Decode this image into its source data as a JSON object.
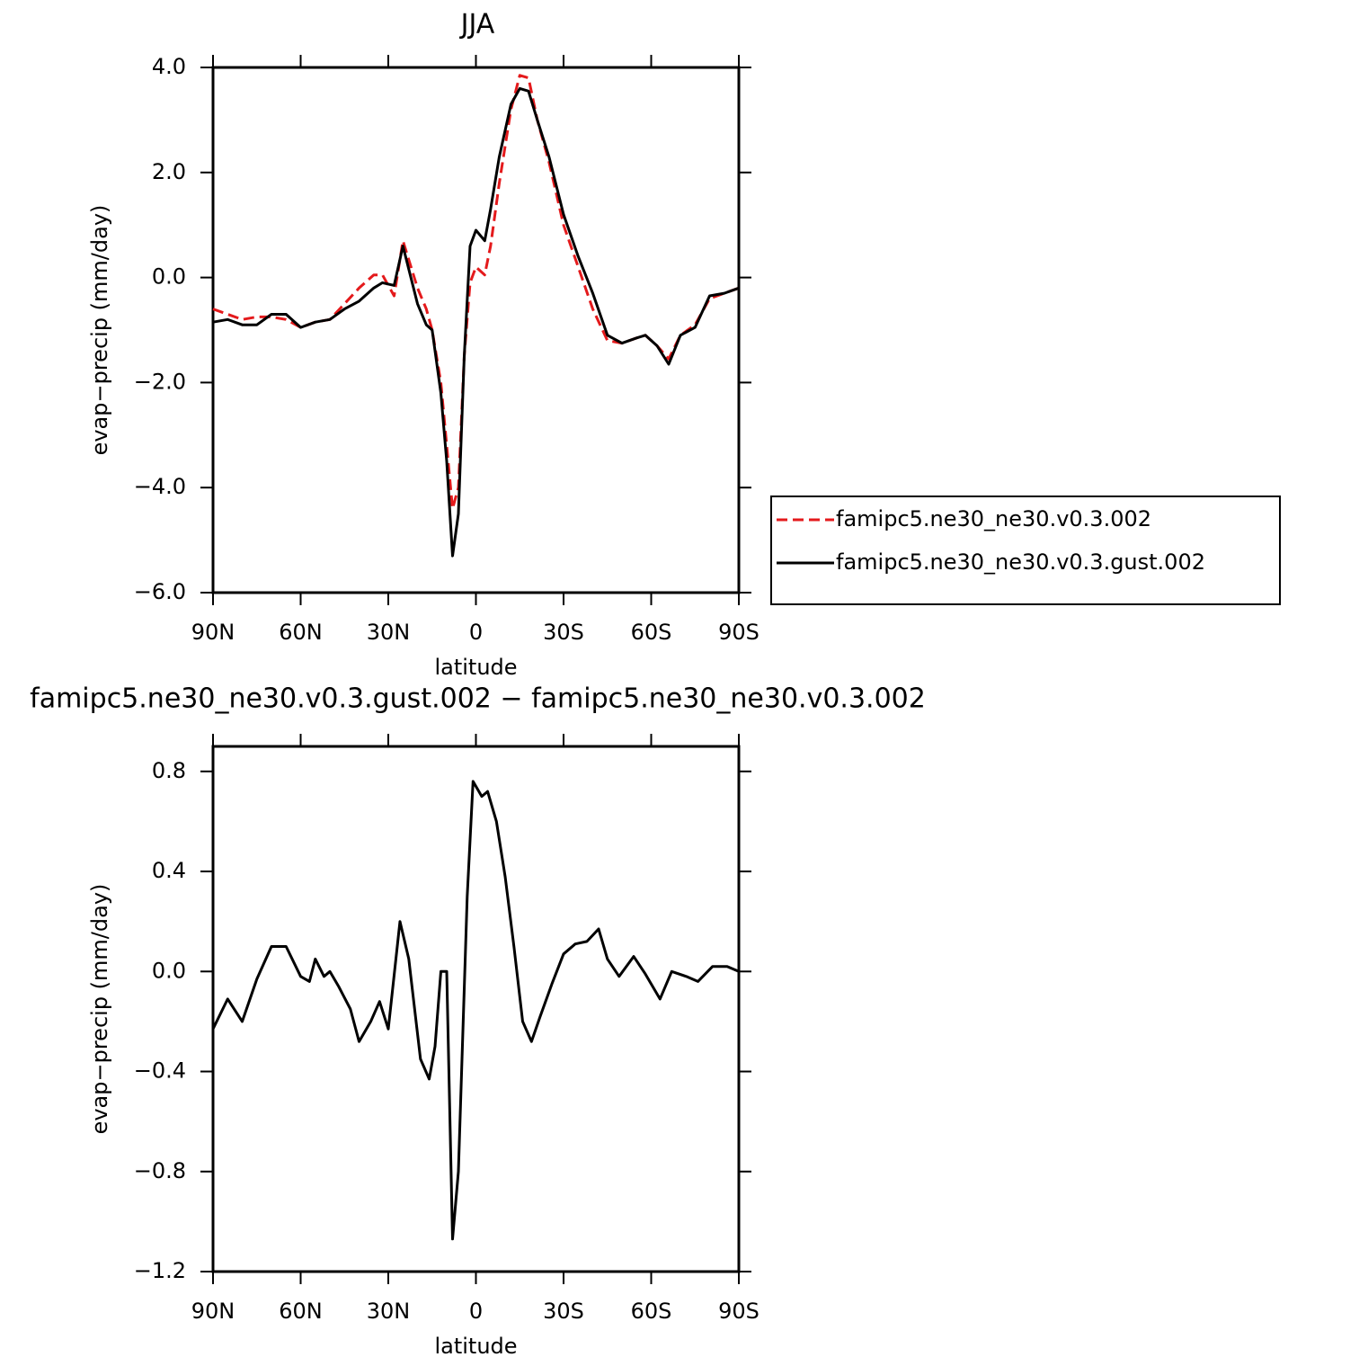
{
  "chart_data": [
    {
      "type": "line",
      "title": "JJA",
      "xlabel": "latitude",
      "ylabel": "evap−precip (mm/day)",
      "x": [
        90,
        85,
        80,
        75,
        70,
        65,
        60,
        55,
        50,
        45,
        40,
        35,
        32,
        28,
        25,
        20,
        17,
        15,
        12,
        10,
        8,
        6,
        4,
        2,
        0,
        -3,
        -5,
        -8,
        -12,
        -15,
        -18,
        -21,
        -25,
        -30,
        -35,
        -40,
        -45,
        -50,
        -55,
        -58,
        -62,
        -66,
        -70,
        -75,
        -80,
        -85,
        -90
      ],
      "series": [
        {
          "name": "famipc5.ne30_ne30.v0.3.002",
          "color": "#e41a1c",
          "style": "dashed",
          "values": [
            -0.6,
            -0.7,
            -0.8,
            -0.75,
            -0.75,
            -0.8,
            -0.95,
            -0.85,
            -0.8,
            -0.5,
            -0.2,
            0.05,
            0.05,
            -0.35,
            0.7,
            -0.2,
            -0.6,
            -1.0,
            -2.0,
            -3.2,
            -4.4,
            -4.0,
            -1.5,
            -0.1,
            0.2,
            0.05,
            0.6,
            1.8,
            3.2,
            3.85,
            3.8,
            3.0,
            2.2,
            1.0,
            0.2,
            -0.6,
            -1.2,
            -1.25,
            -1.15,
            -1.1,
            -1.3,
            -1.55,
            -1.1,
            -0.9,
            -0.4,
            -0.3,
            -0.2
          ]
        },
        {
          "name": "famipc5.ne30_ne30.v0.3.gust.002",
          "color": "#000000",
          "style": "solid",
          "values": [
            -0.85,
            -0.8,
            -0.9,
            -0.9,
            -0.7,
            -0.7,
            -0.95,
            -0.85,
            -0.8,
            -0.6,
            -0.45,
            -0.2,
            -0.1,
            -0.15,
            0.6,
            -0.5,
            -0.9,
            -1.0,
            -2.2,
            -3.5,
            -5.3,
            -4.5,
            -1.5,
            0.6,
            0.9,
            0.7,
            1.3,
            2.3,
            3.3,
            3.6,
            3.55,
            3.0,
            2.3,
            1.2,
            0.4,
            -0.3,
            -1.1,
            -1.25,
            -1.15,
            -1.1,
            -1.3,
            -1.65,
            -1.1,
            -0.95,
            -0.35,
            -0.3,
            -0.2
          ]
        }
      ],
      "xlim": [
        90,
        -90
      ],
      "xticks": [
        {
          "value": 90,
          "label": "90N"
        },
        {
          "value": 60,
          "label": "60N"
        },
        {
          "value": 30,
          "label": "30N"
        },
        0,
        {
          "value": -30,
          "label": "30S"
        },
        {
          "value": -60,
          "label": "60S"
        },
        {
          "value": -90,
          "label": "90S"
        }
      ],
      "ylim": [
        -6,
        4
      ],
      "yticks": [
        {
          "value": 4,
          "label": "4.0"
        },
        {
          "value": 2,
          "label": "2.0"
        },
        {
          "value": 0,
          "label": "0.0"
        },
        {
          "value": -2,
          "label": "−2.0"
        },
        {
          "value": -4,
          "label": "−4.0"
        },
        {
          "value": -6,
          "label": "−6.0"
        }
      ],
      "legend": "right"
    },
    {
      "type": "line",
      "title": "famipc5.ne30_ne30.v0.3.gust.002 − famipc5.ne30_ne30.v0.3.002",
      "xlabel": "latitude",
      "ylabel": "evap−precip (mm/day)",
      "x": [
        90,
        85,
        80,
        75,
        70,
        65,
        60,
        57,
        55,
        52,
        50,
        47,
        43,
        40,
        36,
        33,
        30,
        26,
        23,
        19,
        16,
        14,
        12,
        10,
        8,
        6,
        3,
        1,
        -2,
        -4,
        -7,
        -10,
        -13,
        -16,
        -19,
        -22,
        -26,
        -30,
        -34,
        -38,
        -42,
        -45,
        -49,
        -54,
        -58,
        -63,
        -67,
        -72,
        -76,
        -81,
        -86,
        -90
      ],
      "series": [
        {
          "color": "#000000",
          "style": "solid",
          "values": [
            -0.23,
            -0.11,
            -0.2,
            -0.03,
            0.1,
            0.1,
            -0.02,
            -0.04,
            0.05,
            -0.02,
            0.0,
            -0.06,
            -0.15,
            -0.28,
            -0.2,
            -0.12,
            -0.23,
            0.2,
            0.05,
            -0.35,
            -0.43,
            -0.3,
            0.0,
            0.0,
            -1.07,
            -0.8,
            0.3,
            0.76,
            0.7,
            0.72,
            0.6,
            0.38,
            0.1,
            -0.2,
            -0.28,
            -0.18,
            -0.05,
            0.07,
            0.11,
            0.12,
            0.17,
            0.05,
            -0.02,
            0.06,
            -0.01,
            -0.11,
            0.0,
            -0.02,
            -0.04,
            0.02,
            0.02,
            0.0
          ]
        }
      ],
      "xlim": [
        90,
        -90
      ],
      "xticks": [
        {
          "value": 90,
          "label": "90N"
        },
        {
          "value": 60,
          "label": "60N"
        },
        {
          "value": 30,
          "label": "30N"
        },
        0,
        {
          "value": -30,
          "label": "30S"
        },
        {
          "value": -60,
          "label": "60S"
        },
        {
          "value": -90,
          "label": "90S"
        }
      ],
      "ylim": [
        -1.2,
        0.9
      ],
      "yticks": [
        {
          "value": 0.8,
          "label": "0.8"
        },
        {
          "value": 0.4,
          "label": "0.4"
        },
        {
          "value": 0,
          "label": "0.0"
        },
        {
          "value": -0.4,
          "label": "−0.4"
        },
        {
          "value": -0.8,
          "label": "−0.8"
        },
        {
          "value": -1.2,
          "label": "−1.2"
        }
      ]
    }
  ]
}
